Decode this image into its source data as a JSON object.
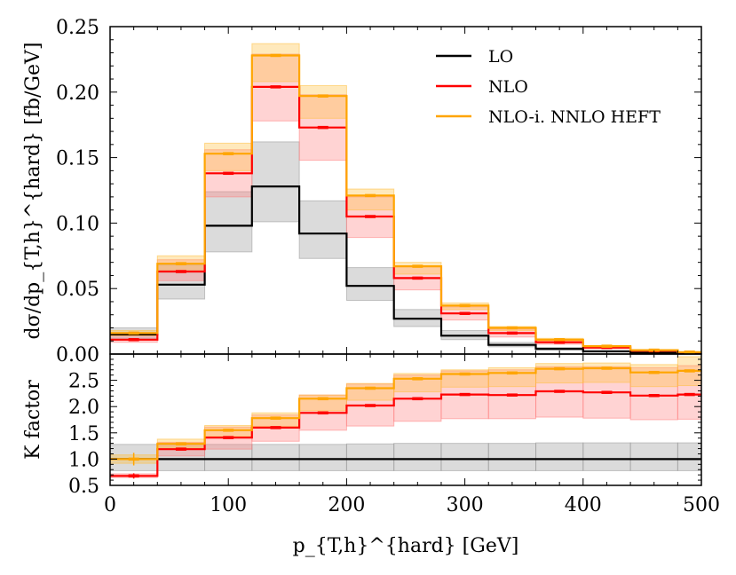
{
  "chart_data": {
    "type": "step",
    "x_bin_edges": [
      0,
      40,
      80,
      120,
      160,
      200,
      240,
      280,
      320,
      360,
      400,
      440,
      480,
      500
    ],
    "xlabel": "p_{T,h}^{hard} [GeV]",
    "x_ticks": [
      "0",
      "100",
      "200",
      "300",
      "400",
      "500"
    ],
    "xlim": [
      0,
      500
    ],
    "top_panel": {
      "ylabel": "dσ/dp_{T,h}^{hard} [fb/GeV]",
      "ylim": [
        0,
        0.25
      ],
      "y_ticks": [
        "0.00",
        "0.05",
        "0.10",
        "0.15",
        "0.20",
        "0.25"
      ],
      "series": [
        {
          "name": "LO",
          "color": "#000000",
          "band_color": "#999999",
          "values": [
            0.015,
            0.053,
            0.098,
            0.128,
            0.092,
            0.052,
            0.027,
            0.014,
            0.007,
            0.004,
            0.002,
            0.001,
            0.0005
          ],
          "band_low": [
            0.012,
            0.042,
            0.078,
            0.101,
            0.073,
            0.041,
            0.021,
            0.011,
            0.0055,
            0.003,
            0.0016,
            0.0008,
            0.0004
          ],
          "band_high": [
            0.02,
            0.068,
            0.124,
            0.162,
            0.117,
            0.066,
            0.034,
            0.018,
            0.0089,
            0.005,
            0.0025,
            0.0013,
            0.0007
          ]
        },
        {
          "name": "NLO",
          "color": "#ff0000",
          "band_color": "#ff8080",
          "values": [
            0.011,
            0.063,
            0.138,
            0.204,
            0.173,
            0.105,
            0.058,
            0.031,
            0.016,
            0.009,
            0.005,
            0.0025,
            0.0012
          ],
          "band_low": [
            0.009,
            0.056,
            0.12,
            0.178,
            0.148,
            0.089,
            0.049,
            0.026,
            0.013,
            0.0075,
            0.004,
            0.002,
            0.001
          ],
          "band_high": [
            0.014,
            0.072,
            0.156,
            0.229,
            0.198,
            0.12,
            0.067,
            0.036,
            0.019,
            0.011,
            0.006,
            0.003,
            0.0015
          ]
        },
        {
          "name": "NLO-i. NNLO HEFT",
          "color": "#ffa500",
          "band_color": "#ffc040",
          "values": [
            0.016,
            0.069,
            0.153,
            0.228,
            0.197,
            0.121,
            0.067,
            0.037,
            0.02,
            0.011,
            0.006,
            0.003,
            0.0015
          ],
          "band_low": [
            0.014,
            0.063,
            0.14,
            0.208,
            0.18,
            0.11,
            0.061,
            0.034,
            0.018,
            0.01,
            0.0054,
            0.0027,
            0.0013
          ],
          "band_high": [
            0.018,
            0.075,
            0.161,
            0.237,
            0.205,
            0.126,
            0.07,
            0.039,
            0.021,
            0.012,
            0.0065,
            0.0033,
            0.0017
          ]
        }
      ]
    },
    "bottom_panel": {
      "ylabel": "K factor",
      "ylim": [
        0.5,
        3.0
      ],
      "y_ticks": [
        "0.5",
        "1.0",
        "1.5",
        "2.0",
        "2.5"
      ],
      "series": [
        {
          "name": "LO",
          "color": "#000000",
          "band_color": "#999999",
          "values": [
            1.0,
            1.0,
            1.0,
            1.0,
            1.0,
            1.0,
            1.0,
            1.0,
            1.0,
            1.0,
            1.0,
            1.0,
            1.0
          ],
          "band_low": [
            0.78,
            0.78,
            0.78,
            0.78,
            0.78,
            0.78,
            0.78,
            0.78,
            0.78,
            0.78,
            0.78,
            0.78,
            0.78
          ],
          "band_high": [
            1.28,
            1.28,
            1.28,
            1.28,
            1.28,
            1.29,
            1.3,
            1.3,
            1.3,
            1.31,
            1.31,
            1.31,
            1.31
          ]
        },
        {
          "name": "NLO",
          "color": "#ff0000",
          "band_color": "#ff8080",
          "values": [
            0.68,
            1.19,
            1.41,
            1.6,
            1.88,
            2.02,
            2.15,
            2.23,
            2.22,
            2.29,
            2.27,
            2.21,
            2.23
          ],
          "band_low": [
            0.65,
            1.06,
            1.19,
            1.34,
            1.55,
            1.63,
            1.72,
            1.77,
            1.77,
            1.8,
            1.78,
            1.75,
            1.76
          ],
          "band_high": [
            0.72,
            1.32,
            1.61,
            1.84,
            2.22,
            2.43,
            2.6,
            2.68,
            2.7,
            2.76,
            2.76,
            2.74,
            2.78
          ]
        },
        {
          "name": "NLO-i. NNLO HEFT",
          "color": "#ffa500",
          "band_color": "#ffc040",
          "values": [
            1.0,
            1.29,
            1.55,
            1.78,
            2.15,
            2.35,
            2.53,
            2.62,
            2.64,
            2.72,
            2.73,
            2.65,
            2.68
          ],
          "band_low": [
            0.92,
            1.22,
            1.43,
            1.62,
            1.92,
            2.12,
            2.28,
            2.37,
            2.38,
            2.45,
            2.46,
            2.38,
            2.4
          ],
          "band_high": [
            1.08,
            1.38,
            1.64,
            1.88,
            2.22,
            2.44,
            2.63,
            2.7,
            2.74,
            2.82,
            2.83,
            2.8,
            2.95
          ]
        }
      ]
    },
    "legend": {
      "location": "top-right",
      "entries": [
        "LO",
        "NLO",
        "NLO-i. NNLO HEFT"
      ]
    }
  }
}
